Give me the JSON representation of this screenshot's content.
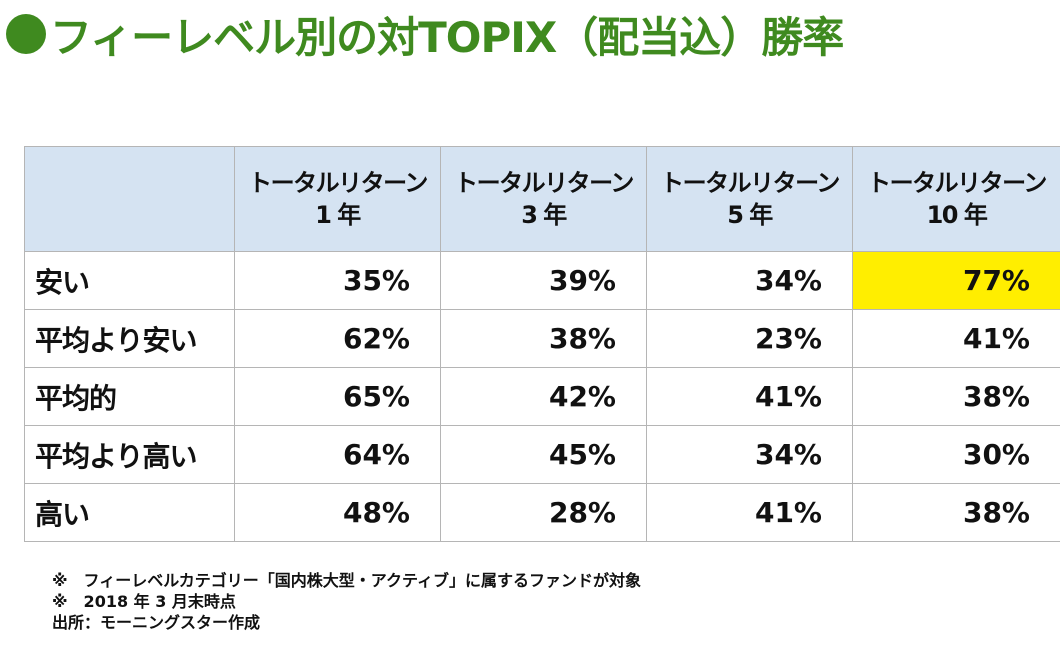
{
  "title": "フィーレベル別の対TOPIX（配当込）勝率",
  "colors": {
    "title": "#3f8a1f",
    "header_bg": "#d5e3f2",
    "highlight": "#ffee00",
    "border": "#b5b5b5"
  },
  "chart_data": {
    "type": "table",
    "columns": [
      {
        "line1": "トータルリターン",
        "line2": "1 年"
      },
      {
        "line1": "トータルリターン",
        "line2": "3 年"
      },
      {
        "line1": "トータルリターン",
        "line2": "5 年"
      },
      {
        "line1": "トータルリターン",
        "line2": "10 年"
      }
    ],
    "rows": [
      {
        "label": "安い",
        "values": [
          "35%",
          "39%",
          "34%",
          "77%"
        ]
      },
      {
        "label": "平均より安い",
        "values": [
          "62%",
          "38%",
          "23%",
          "41%"
        ]
      },
      {
        "label": "平均的",
        "values": [
          "65%",
          "42%",
          "41%",
          "38%"
        ]
      },
      {
        "label": "平均より高い",
        "values": [
          "64%",
          "45%",
          "34%",
          "30%"
        ]
      },
      {
        "label": "高い",
        "values": [
          "48%",
          "28%",
          "41%",
          "38%"
        ]
      }
    ],
    "highlight_cell": {
      "row": 0,
      "col": 3
    }
  },
  "notes": [
    "※　フィーレベルカテゴリー「国内株大型・アクティブ」に属するファンドが対象",
    "※　2018 年 3 月末時点",
    "出所：モーニングスター作成"
  ]
}
